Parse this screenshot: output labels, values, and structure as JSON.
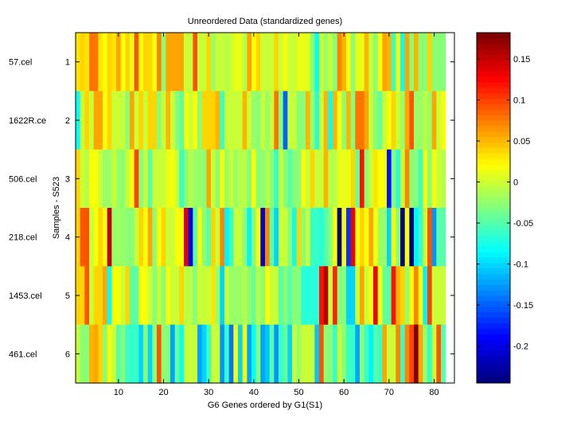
{
  "chart_data": {
    "type": "heatmap",
    "title": "Unreordered Data (standardized genes)",
    "xlabel": "G6 Genes ordered by G1(S1)",
    "ylabel": "Samples - S523",
    "xlim": [
      0.5,
      84.5
    ],
    "ylim": [
      0.5,
      6.5
    ],
    "x_ticks": [
      10,
      20,
      30,
      40,
      50,
      60,
      70,
      80
    ],
    "y_ticks": [
      1,
      2,
      3,
      4,
      5,
      6
    ],
    "sample_labels": [
      "57.cel",
      "1622R.ce",
      "506.cel",
      "218.cel",
      "1453.cel",
      "461.cel"
    ],
    "colormap": "jet",
    "clim": [
      -0.245,
      0.182
    ],
    "colorbar_ticks": [
      0.15,
      0.1,
      0.05,
      0,
      -0.05,
      -0.1,
      -0.15,
      -0.2
    ],
    "values": [
      [
        0.03,
        0.04,
        0.035,
        0.08,
        0.08,
        0.035,
        0.02,
        0.04,
        0.03,
        0.06,
        0.02,
        0.04,
        0.01,
        0.09,
        0.02,
        0.04,
        0.04,
        0.02,
        0.07,
        -0.03,
        0.06,
        0.06,
        0.06,
        0.06,
        0.0,
        0.0,
        0.09,
        0.0,
        0.0,
        0.04,
        -0.02,
        0.0,
        0.0,
        -0.01,
        0.0,
        0.01,
        0.01,
        -0.01,
        0.06,
        0.02,
        0.04,
        0.0,
        0.0,
        0.0,
        0.04,
        0.0,
        0.02,
        0.0,
        0.0,
        0.01,
        0.01,
        0.01,
        -0.03,
        -0.08,
        0.0,
        -0.02,
        0.0,
        -0.03,
        0.07,
        0.05,
        0.02,
        -0.03,
        0.01,
        0.01,
        0.05,
        0.0,
        -0.03,
        0.02,
        0.06,
        0.05,
        -0.06,
        0.02,
        -0.08,
        0.06,
        -0.03,
        0.05,
        -0.03,
        -0.03,
        0.04,
        -0.03,
        -0.03,
        -0.03
      ],
      [
        -0.08,
        0.0,
        0.04,
        0.0,
        0.06,
        0.06,
        0.02,
        0.04,
        0.0,
        0.0,
        0.0,
        -0.03,
        0.06,
        0.0,
        0.04,
        0.0,
        0.04,
        0.04,
        -0.03,
        0.0,
        0.05,
        0.0,
        -0.03,
        -0.05,
        0.02,
        0.0,
        0.02,
        -0.03,
        0.04,
        0.04,
        0.04,
        0.05,
        -0.06,
        0.0,
        0.0,
        0.0,
        0.0,
        0.05,
        0.0,
        -0.02,
        -0.03,
        0.0,
        -0.02,
        0.0,
        0.08,
        -0.03,
        -0.15,
        0.0,
        0.0,
        -0.03,
        -0.03,
        0.05,
        -0.02,
        -0.07,
        0.0,
        0.05,
        -0.08,
        0.05,
        0.02,
        -0.03,
        0.05,
        -0.03,
        0.08,
        0.08,
        0.06,
        0.0,
        -0.03,
        -0.04,
        0.0,
        0.02,
        0.04,
        0.0,
        -0.02,
        0.06,
        0.09,
        -0.02,
        -0.02,
        -0.01,
        -0.02,
        0.06,
        0.0,
        0.02
      ],
      [
        0.04,
        0.0,
        -0.01,
        0.02,
        0.02,
        0.0,
        -0.02,
        -0.02,
        0.0,
        -0.02,
        -0.03,
        0.0,
        0.02,
        0.1,
        -0.03,
        0.0,
        -0.05,
        0.0,
        0.0,
        0.0,
        0.01,
        0.02,
        0.0,
        -0.06,
        -0.03,
        -0.01,
        -0.02,
        -0.02,
        -0.03,
        0.06,
        0.0,
        -0.03,
        0.02,
        -0.02,
        0.0,
        -0.02,
        -0.01,
        -0.01,
        -0.03,
        0.02,
        -0.03,
        -0.03,
        -0.01,
        -0.03,
        -0.06,
        0.0,
        -0.03,
        -0.05,
        -0.03,
        -0.03,
        0.02,
        0.0,
        0.04,
        0.0,
        0.0,
        0.05,
        -0.01,
        -0.01,
        0.01,
        0.01,
        0.01,
        0.04,
        -0.04,
        0.12,
        -0.03,
        0.0,
        0.03,
        0.02,
        0.02,
        -0.18,
        -0.03,
        -0.07,
        0.0,
        0.07,
        -0.03,
        -0.03,
        -0.06,
        0.02,
        -0.03,
        0.02,
        0.0,
        -0.01
      ],
      [
        0.04,
        0.09,
        0.09,
        0.0,
        0.02,
        0.04,
        0.02,
        0.15,
        -0.02,
        -0.02,
        -0.02,
        -0.03,
        -0.03,
        0.0,
        0.04,
        0.02,
        0.06,
        -0.03,
        0.02,
        0.04,
        0.0,
        0.0,
        0.02,
        0.02,
        0.14,
        -0.2,
        -0.05,
        0.02,
        -0.03,
        -0.05,
        0.04,
        0.0,
        0.07,
        -0.09,
        -0.06,
        0.0,
        0.0,
        -0.03,
        -0.09,
        -0.03,
        0.02,
        -0.21,
        0.07,
        -0.05,
        -0.1,
        0.0,
        0.0,
        -0.03,
        -0.08,
        0.04,
        -0.03,
        0.0,
        -0.06,
        -0.06,
        -0.07,
        -0.05,
        -0.03,
        0.02,
        -0.24,
        0.02,
        -0.17,
        0.13,
        0.02,
        0.04,
        0.02,
        0.06,
        0.02,
        -0.02,
        -0.02,
        -0.1,
        0.02,
        -0.03,
        -0.24,
        0.02,
        -0.24,
        -0.09,
        -0.06,
        0.0,
        0.09,
        -0.13,
        -0.05,
        -0.05
      ],
      [
        0.04,
        0.04,
        0.09,
        0.0,
        0.04,
        0.04,
        0.06,
        -0.08,
        0.02,
        0.02,
        0.0,
        0.04,
        -0.05,
        -0.05,
        0.02,
        0.02,
        0.0,
        -0.03,
        0.0,
        -0.03,
        0.02,
        0.0,
        0.0,
        0.04,
        -0.01,
        -0.01,
        -0.03,
        0.0,
        0.0,
        0.0,
        0.03,
        -0.02,
        -0.1,
        0.0,
        -0.02,
        -0.02,
        -0.02,
        -0.01,
        -0.03,
        -0.04,
        -0.01,
        -0.03,
        0.02,
        0.0,
        0.0,
        -0.05,
        -0.03,
        -0.05,
        -0.03,
        -0.03,
        -0.07,
        -0.07,
        -0.07,
        -0.07,
        0.12,
        0.16,
        0.0,
        0.11,
        -0.03,
        -0.03,
        -0.1,
        -0.1,
        0.0,
        0.06,
        0.0,
        0.02,
        0.13,
        0.02,
        -0.04,
        -0.05,
        0.12,
        0.05,
        0.04,
        -0.02,
        0.02,
        0.07,
        0.02,
        -0.09,
        0.1,
        0.0,
        0.0,
        0.0
      ],
      [
        0.0,
        -0.03,
        -0.03,
        0.05,
        0.06,
        0.04,
        -0.03,
        0.02,
        0.0,
        -0.05,
        -0.03,
        -0.06,
        -0.06,
        -0.06,
        -0.1,
        -0.03,
        -0.1,
        -0.03,
        0.09,
        -0.03,
        -0.03,
        -0.12,
        -0.04,
        -0.08,
        0.0,
        0.0,
        0.0,
        -0.12,
        -0.1,
        -0.06,
        0.0,
        0.0,
        -0.13,
        -0.06,
        -0.14,
        0.02,
        -0.1,
        0.02,
        -0.12,
        -0.08,
        -0.03,
        -0.12,
        -0.11,
        -0.05,
        -0.13,
        -0.06,
        -0.04,
        -0.1,
        0.0,
        -0.02,
        0.0,
        0.0,
        0.0,
        -0.11,
        0.09,
        -0.03,
        -0.03,
        -0.06,
        0.0,
        -0.03,
        -0.06,
        -0.06,
        -0.12,
        -0.03,
        -0.06,
        -0.09,
        -0.05,
        -0.06,
        0.06,
        0.0,
        0.0,
        0.07,
        -0.06,
        0.07,
        0.1,
        0.18,
        0.06,
        -0.02,
        -0.06,
        0.0,
        0.09,
        -0.05
      ]
    ]
  }
}
